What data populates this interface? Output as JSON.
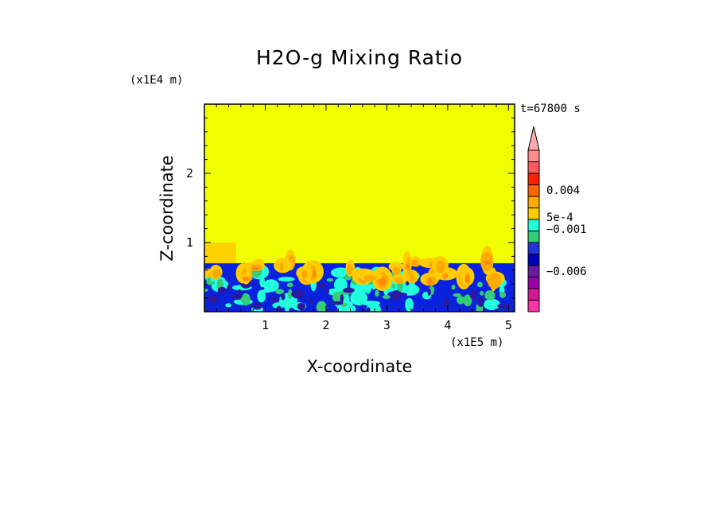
{
  "chart_data": {
    "type": "heatmap",
    "title": "H2O-g Mixing Ratio",
    "xlabel": "X-coordinate",
    "ylabel": "Z-coordinate",
    "x_unit": "(x1E5 m)",
    "y_unit": "(x1E4 m)",
    "time_label": "t=67800 s",
    "x_ticks": [
      "1",
      "2",
      "3",
      "4",
      "5"
    ],
    "y_ticks": [
      "1",
      "2"
    ],
    "xlim": [
      0,
      5.1
    ],
    "ylim": [
      0,
      3.0
    ],
    "background_value_color": "#f0ff00",
    "colorbar": {
      "colors": [
        "#ff33aa",
        "#d4189a",
        "#9900aa",
        "#6a1ba5",
        "#0000bb",
        "#2233dd",
        "#33cc77",
        "#22ffdd",
        "#ffcc00",
        "#ffaa00",
        "#ff6600",
        "#ff2200",
        "#ff5a5a",
        "#ff8a8a"
      ],
      "labels": [
        "0.004",
        "5e-4",
        "−0.001",
        "−0.006"
      ],
      "extend": "max"
    }
  }
}
